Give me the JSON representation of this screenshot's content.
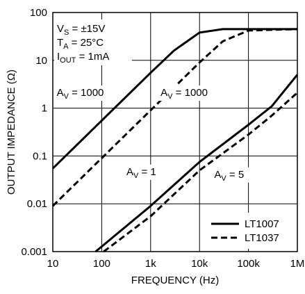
{
  "chart_data": {
    "type": "line",
    "xlabel": "FREQUENCY (Hz)",
    "ylabel": "OUTPUT IMPEDANCE (Ω)",
    "x_scale": "log",
    "y_scale": "log",
    "xlim": [
      10,
      1000000
    ],
    "ylim": [
      0.001,
      100
    ],
    "grid": true,
    "x_ticks": [
      {
        "value": 10,
        "label": "10"
      },
      {
        "value": 100,
        "label": "100"
      },
      {
        "value": 1000,
        "label": "1k"
      },
      {
        "value": 10000,
        "label": "10k"
      },
      {
        "value": 100000,
        "label": "100k"
      },
      {
        "value": 1000000,
        "label": "1M"
      }
    ],
    "y_ticks": [
      {
        "value": 100,
        "label": "100"
      },
      {
        "value": 10,
        "label": "10"
      },
      {
        "value": 1,
        "label": "1"
      },
      {
        "value": 0.1,
        "label": "0.1"
      },
      {
        "value": 0.01,
        "label": "0.01"
      },
      {
        "value": 0.001,
        "label": "0.001"
      }
    ],
    "conditions": [
      {
        "main": "V",
        "sub": "S",
        "rest": " = ±15V"
      },
      {
        "main": "T",
        "sub": "A",
        "rest": " = 25°C"
      },
      {
        "main": "I",
        "sub": "OUT",
        "rest": " = 1mA"
      }
    ],
    "legend": {
      "placement": "bottom-right",
      "entries": [
        {
          "label": "LT1007",
          "style": "solid"
        },
        {
          "label": "LT1037",
          "style": "dashed"
        }
      ]
    },
    "series": [
      {
        "name": "LT1007",
        "gain": "A_V = 1000",
        "style": "solid",
        "x": [
          10,
          100,
          1000,
          3000,
          10000,
          30000,
          100000,
          1000000
        ],
        "y": [
          0.055,
          0.55,
          5.5,
          16,
          38,
          45,
          45,
          45
        ]
      },
      {
        "name": "LT1037",
        "gain": "A_V = 1000",
        "style": "dashed",
        "x": [
          10,
          100,
          1000,
          3000,
          10000,
          30000,
          100000,
          1000000
        ],
        "y": [
          0.009,
          0.09,
          0.9,
          2.7,
          9,
          25,
          42,
          45
        ]
      },
      {
        "name": "LT1007",
        "gain": "A_V = 1",
        "style": "solid",
        "x": [
          75,
          1000,
          10000,
          100000,
          300000,
          1000000
        ],
        "y": [
          0.001,
          0.009,
          0.075,
          0.45,
          1.1,
          5
        ]
      },
      {
        "name": "LT1037",
        "gain": "A_V = 5",
        "style": "dashed",
        "x": [
          110,
          1000,
          10000,
          100000,
          300000,
          1000000
        ],
        "y": [
          0.001,
          0.0055,
          0.05,
          0.28,
          0.7,
          2.1
        ]
      }
    ],
    "annotations": [
      {
        "main": "A",
        "sub": "V",
        "rest": " = 1000",
        "x": 12,
        "y": 1.8
      },
      {
        "main": "A",
        "sub": "V",
        "rest": " = 1000",
        "x": 1600,
        "y": 1.8
      },
      {
        "main": "A",
        "sub": "V",
        "rest": " = 1",
        "x": 320,
        "y": 0.04
      },
      {
        "main": "A",
        "sub": "V",
        "rest": " = 5",
        "x": 20000,
        "y": 0.035
      }
    ],
    "colors": {
      "line": "#000000",
      "grid": "#000000",
      "background": "#ffffff"
    }
  }
}
